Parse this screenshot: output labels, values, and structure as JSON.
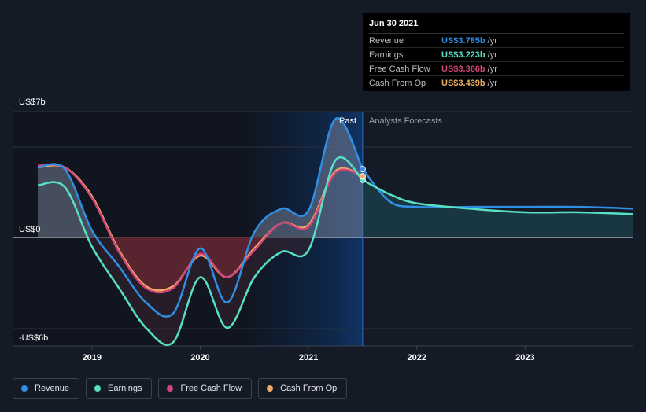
{
  "chart_data": {
    "type": "area",
    "y_unit_labels": {
      "top": "US$7b",
      "zero": "US$0",
      "bottom": "-US$6b"
    },
    "x_ticks": [
      "2019",
      "2020",
      "2021",
      "2022",
      "2023"
    ],
    "x_range": [
      2018.5,
      2024.0
    ],
    "y_range": [
      -6,
      7
    ],
    "regions": {
      "past_label": "Past",
      "forecast_label": "Analysts Forecasts",
      "divider_x": 2021.5,
      "highlight_start_x": 2020.5
    },
    "series": [
      {
        "name": "Revenue",
        "color": "#2f8ee5",
        "x": [
          2018.5,
          2018.75,
          2019.0,
          2019.25,
          2019.5,
          2019.75,
          2020.0,
          2020.25,
          2020.5,
          2020.75,
          2021.0,
          2021.25,
          2021.5
        ],
        "values": [
          3.9,
          3.8,
          0.4,
          -1.6,
          -3.6,
          -4.2,
          -0.6,
          -3.6,
          0.3,
          1.6,
          1.5,
          6.6,
          3.8
        ]
      },
      {
        "name": "Earnings",
        "color": "#58e0c4",
        "x": [
          2018.5,
          2018.75,
          2019.0,
          2019.25,
          2019.5,
          2019.75,
          2020.0,
          2020.25,
          2020.5,
          2020.75,
          2021.0,
          2021.25,
          2021.5
        ],
        "values": [
          2.9,
          2.8,
          -0.5,
          -2.8,
          -5.0,
          -5.8,
          -2.2,
          -5.0,
          -2.2,
          -0.8,
          -0.7,
          4.3,
          3.2
        ]
      },
      {
        "name": "Free Cash Flow",
        "color": "#d1457a",
        "x": [
          2018.5,
          2018.75,
          2019.0,
          2019.25,
          2019.5,
          2019.75,
          2020.0,
          2020.25,
          2020.5,
          2020.75,
          2021.0,
          2021.25,
          2021.5
        ],
        "values": [
          4.0,
          3.9,
          2.2,
          -0.8,
          -2.8,
          -2.8,
          -0.9,
          -2.2,
          -0.7,
          0.8,
          0.6,
          3.6,
          3.4
        ]
      },
      {
        "name": "Cash From Op",
        "color": "#f0ac66",
        "x": [
          2018.5,
          2018.75,
          2019.0,
          2019.25,
          2019.5,
          2019.75,
          2020.0,
          2020.25,
          2020.5,
          2020.75,
          2021.0,
          2021.25,
          2021.5
        ],
        "values": [
          3.9,
          3.9,
          2.3,
          -0.7,
          -2.7,
          -2.7,
          -1.0,
          -2.2,
          -0.6,
          0.8,
          0.7,
          3.7,
          3.4
        ]
      }
    ],
    "forecast": [
      {
        "name": "Revenue",
        "x": [
          2021.5,
          2021.75,
          2022.0,
          2022.5,
          2023.0,
          2023.5,
          2024.0
        ],
        "values": [
          3.8,
          2.0,
          1.7,
          1.7,
          1.7,
          1.7,
          1.6
        ]
      },
      {
        "name": "Earnings",
        "x": [
          2021.5,
          2021.75,
          2022.0,
          2022.5,
          2023.0,
          2023.5,
          2024.0
        ],
        "values": [
          3.2,
          2.4,
          1.9,
          1.6,
          1.4,
          1.4,
          1.3
        ]
      }
    ]
  },
  "tooltip": {
    "date": "Jun 30 2021",
    "rows": [
      {
        "name": "Revenue",
        "value": "US$3.785b",
        "unit": "/yr",
        "color": "#2f8ee5"
      },
      {
        "name": "Earnings",
        "value": "US$3.223b",
        "unit": "/yr",
        "color": "#58e0c4"
      },
      {
        "name": "Free Cash Flow",
        "value": "US$3.366b",
        "unit": "/yr",
        "color": "#d1457a"
      },
      {
        "name": "Cash From Op",
        "value": "US$3.439b",
        "unit": "/yr",
        "color": "#f0ac66"
      }
    ]
  },
  "legend": [
    {
      "label": "Revenue",
      "color": "#2f8ee5"
    },
    {
      "label": "Earnings",
      "color": "#58e0c4"
    },
    {
      "label": "Free Cash Flow",
      "color": "#d1457a"
    },
    {
      "label": "Cash From Op",
      "color": "#f0ac66"
    }
  ]
}
